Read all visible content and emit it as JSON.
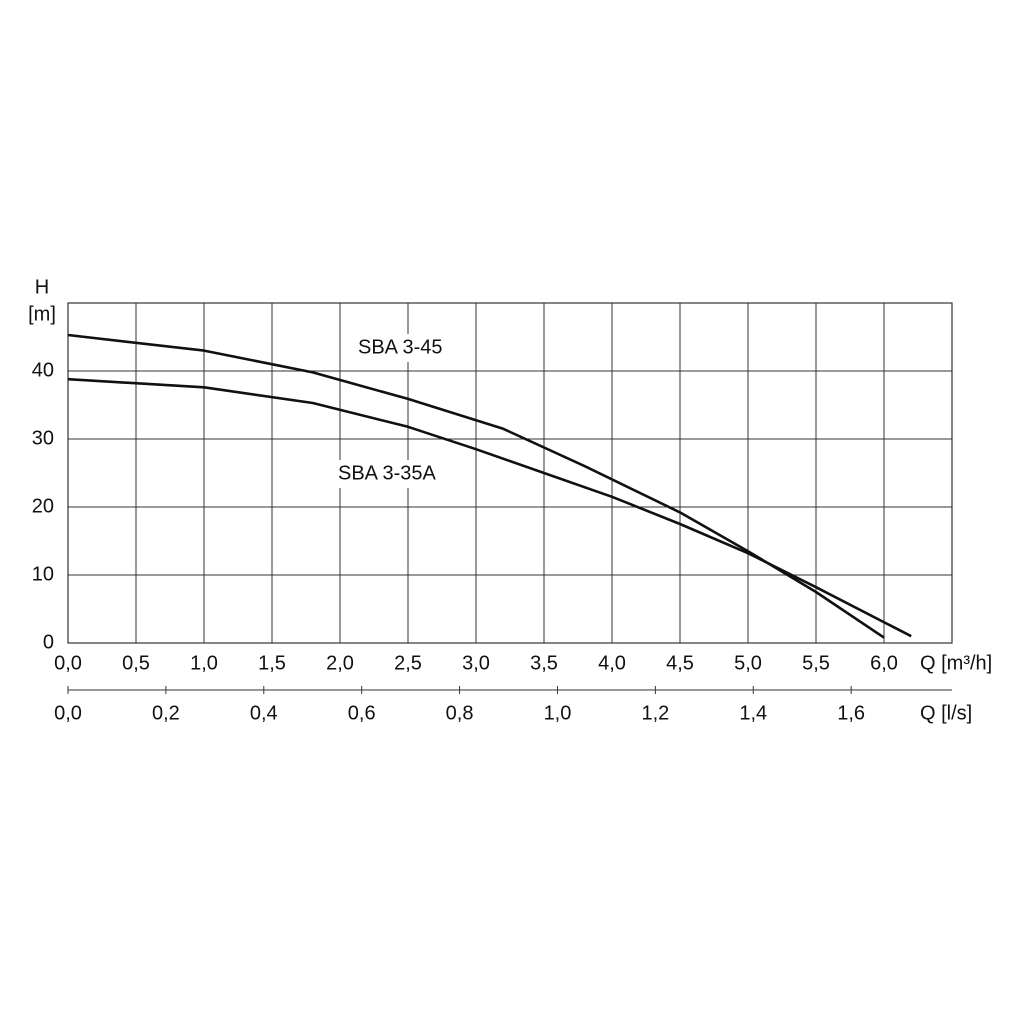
{
  "chart_data": {
    "type": "line",
    "y_label": "H",
    "y_unit": "[m]",
    "x_label": "Q [m³/h]",
    "x2_label": "Q [l/s]",
    "xlim": [
      0,
      6.5
    ],
    "ylim": [
      0,
      50
    ],
    "xticks": [
      {
        "value": 0,
        "label": "0,0"
      },
      {
        "value": 0.5,
        "label": "0,5"
      },
      {
        "value": 1,
        "label": "1,0"
      },
      {
        "value": 1.5,
        "label": "1,5"
      },
      {
        "value": 2,
        "label": "2,0"
      },
      {
        "value": 2.5,
        "label": "2,5"
      },
      {
        "value": 3,
        "label": "3,0"
      },
      {
        "value": 3.5,
        "label": "3,5"
      },
      {
        "value": 4,
        "label": "4,0"
      },
      {
        "value": 4.5,
        "label": "4,5"
      },
      {
        "value": 5,
        "label": "5,0"
      },
      {
        "value": 5.5,
        "label": "5,5"
      },
      {
        "value": 6,
        "label": "6,0"
      }
    ],
    "yticks": [
      0,
      10,
      20,
      30,
      40
    ],
    "x2lim": [
      0,
      1.806
    ],
    "x2ticks": [
      {
        "value": 0,
        "label": "0,0"
      },
      {
        "value": 0.2,
        "label": "0,2"
      },
      {
        "value": 0.4,
        "label": "0,4"
      },
      {
        "value": 0.6,
        "label": "0,6"
      },
      {
        "value": 0.8,
        "label": "0,8"
      },
      {
        "value": 1,
        "label": "1,0"
      },
      {
        "value": 1.2,
        "label": "1,2"
      },
      {
        "value": 1.4,
        "label": "1,4"
      },
      {
        "value": 1.6,
        "label": "1,6"
      }
    ],
    "grid": true,
    "series": [
      {
        "name": "SBA 3-45",
        "color": "#111111",
        "x": [
          0,
          1.0,
          1.8,
          2.5,
          3.2,
          3.8,
          4.5,
          5.0,
          5.5,
          6.0
        ],
        "values": [
          45.3,
          43,
          39.8,
          35.9,
          31.5,
          26,
          19.2,
          13.5,
          7.5,
          0.8
        ]
      },
      {
        "name": "SBA 3-35A",
        "color": "#111111",
        "x": [
          0,
          1.0,
          1.8,
          2.5,
          3.0,
          3.5,
          4.0,
          4.5,
          5.0,
          5.5,
          6.2
        ],
        "values": [
          38.8,
          37.6,
          35.3,
          31.8,
          28.5,
          25,
          21.5,
          17.5,
          13.2,
          8.2,
          1.0
        ]
      }
    ]
  }
}
